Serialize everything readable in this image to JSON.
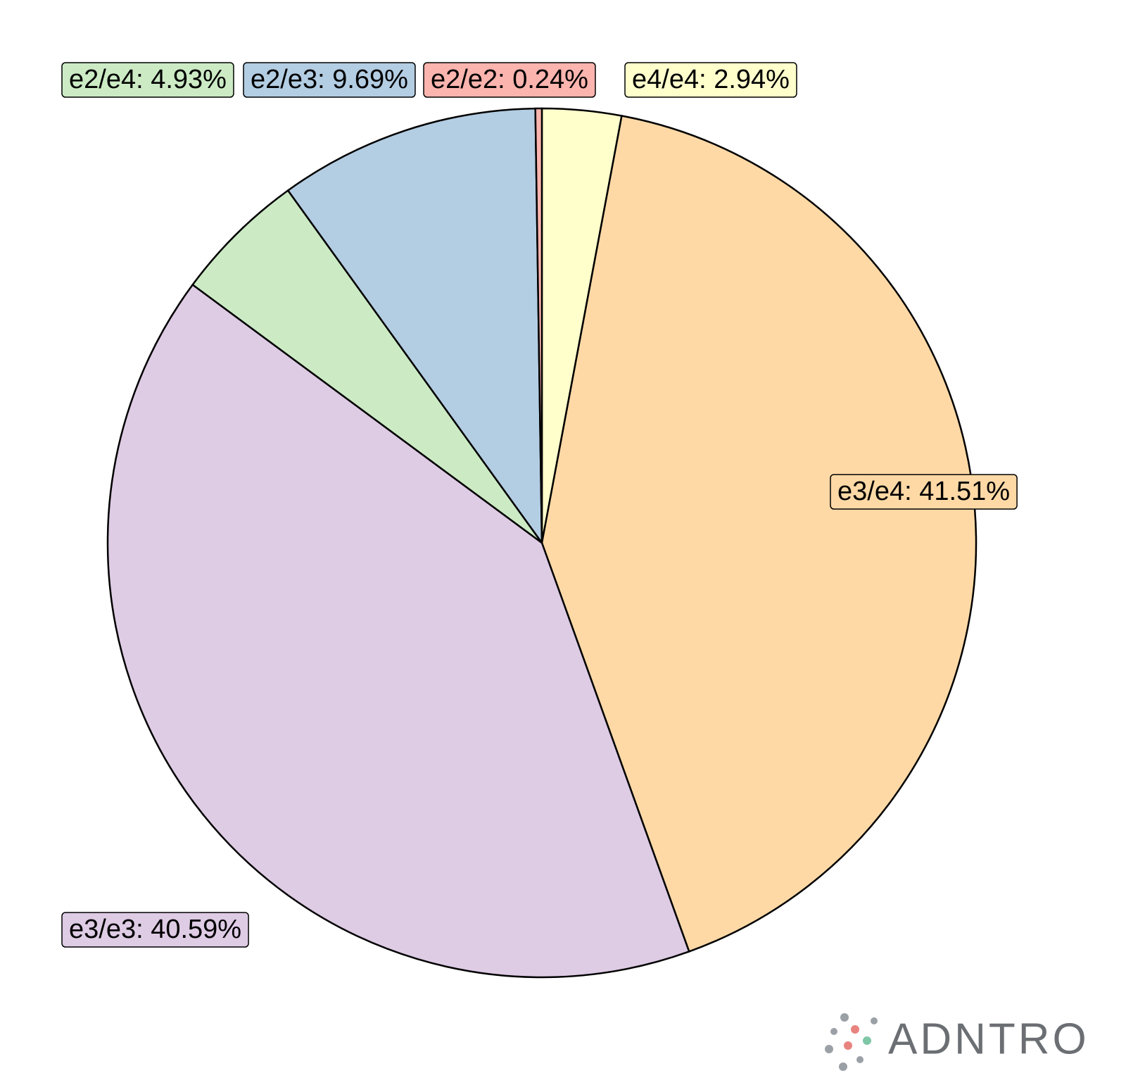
{
  "chart_data": {
    "type": "pie",
    "values": [
      2.94,
      41.51,
      40.59,
      4.93,
      9.69,
      0.24
    ],
    "value_labels": [
      "e4/e4: 2.94%",
      "e3/e4: 41.51%",
      "e3/e3: 40.59%",
      "e2/e4: 4.93%",
      "e2/e3: 9.69%",
      "e2/e2: 0.24%"
    ],
    "colors": [
      "#ffffcc",
      "#fed9a6",
      "#decbe4",
      "#ccebc5",
      "#b3cde3",
      "#fbb4ae"
    ]
  },
  "watermark": "ADNTRO"
}
